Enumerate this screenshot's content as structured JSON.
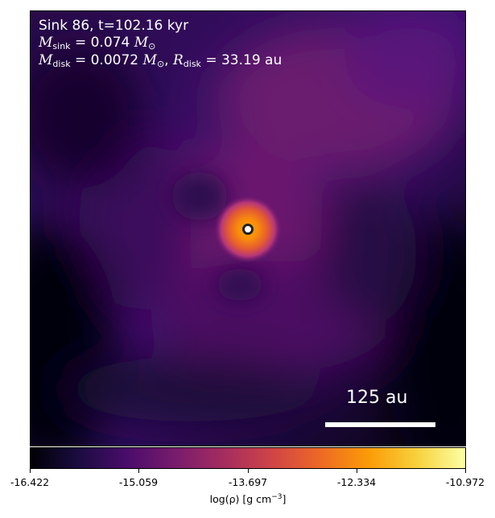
{
  "panel": {
    "line1": "Sink 86, t=102.16 kyr",
    "m_sym": "M",
    "sink_sub": "sink",
    "sink_val": "= 0.074",
    "m_unit": "M",
    "sun_sub": "⊙",
    "disk_sub": "disk",
    "disk_val": "= 0.0072",
    "r_sym": "R",
    "r_val": "= 33.19 au"
  },
  "scalebar": {
    "label": "125 au"
  },
  "colorbar": {
    "ticks": [
      "-16.422",
      "-15.059",
      "-13.697",
      "-12.334",
      "-10.972"
    ],
    "label_main": "log(ρ) [g cm",
    "label_exp": "−3",
    "label_end": "]",
    "colors": [
      "#000004",
      "#1b0c41",
      "#4a0c6b",
      "#781c6d",
      "#a52c60",
      "#cf4446",
      "#ed6925",
      "#fb9b06",
      "#f7d13d",
      "#fcffa4"
    ]
  },
  "colors": {
    "background_dark": "#000004",
    "sink_marker_fill": "#ffffff",
    "sink_marker_edge": "#222222"
  }
}
